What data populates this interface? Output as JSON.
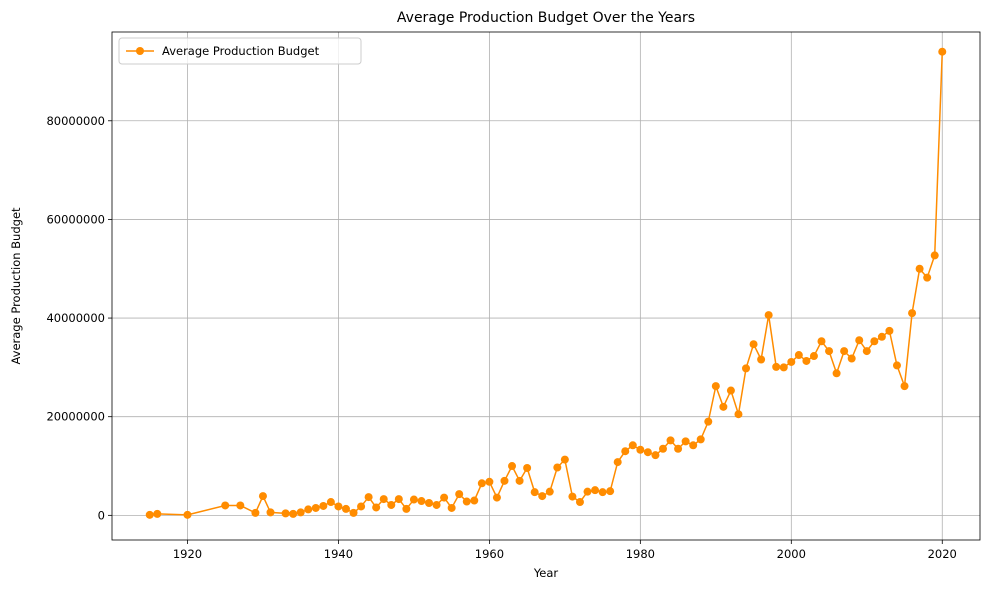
{
  "chart_data": {
    "type": "line",
    "title": "Average Production Budget Over the Years",
    "xlabel": "Year",
    "ylabel": "Average Production Budget",
    "xlim": [
      1910,
      2025
    ],
    "ylim": [
      -5000000,
      98000000
    ],
    "xticks": [
      1920,
      1940,
      1960,
      1980,
      2000,
      2020
    ],
    "yticks": [
      0,
      20000000,
      40000000,
      60000000,
      80000000
    ],
    "ytick_labels": [
      "0",
      "20000000",
      "40000000",
      "60000000",
      "80000000"
    ],
    "grid": true,
    "legend": "top-left",
    "color": "#ff8c00",
    "series": [
      {
        "name": "Average Production Budget",
        "x": [
          1915,
          1916,
          1920,
          1925,
          1927,
          1929,
          1930,
          1931,
          1933,
          1934,
          1935,
          1936,
          1937,
          1938,
          1939,
          1940,
          1941,
          1942,
          1943,
          1944,
          1945,
          1946,
          1947,
          1948,
          1949,
          1950,
          1951,
          1952,
          1953,
          1954,
          1955,
          1956,
          1957,
          1958,
          1959,
          1960,
          1961,
          1962,
          1963,
          1964,
          1965,
          1966,
          1967,
          1968,
          1969,
          1970,
          1971,
          1972,
          1973,
          1974,
          1975,
          1976,
          1977,
          1978,
          1979,
          1980,
          1981,
          1982,
          1983,
          1984,
          1985,
          1986,
          1987,
          1988,
          1989,
          1990,
          1991,
          1992,
          1993,
          1994,
          1995,
          1996,
          1997,
          1998,
          1999,
          2000,
          2001,
          2002,
          2003,
          2004,
          2005,
          2006,
          2007,
          2008,
          2009,
          2010,
          2011,
          2012,
          2013,
          2014,
          2015,
          2016,
          2017,
          2018,
          2019,
          2020
        ],
        "y": [
          100000,
          300000,
          100000,
          2000000,
          2000000,
          500000,
          3900000,
          600000,
          400000,
          300000,
          600000,
          1200000,
          1500000,
          1900000,
          2700000,
          1800000,
          1300000,
          500000,
          1800000,
          3700000,
          1600000,
          3300000,
          2100000,
          3300000,
          1300000,
          3200000,
          2900000,
          2500000,
          2100000,
          3600000,
          1500000,
          4300000,
          2800000,
          3000000,
          6500000,
          6800000,
          3600000,
          7000000,
          10000000,
          7000000,
          9600000,
          4700000,
          3900000,
          4800000,
          9700000,
          11300000,
          3800000,
          2700000,
          4800000,
          5100000,
          4700000,
          4900000,
          10800000,
          13000000,
          14200000,
          13300000,
          12800000,
          12200000,
          13500000,
          15200000,
          13500000,
          15000000,
          14200000,
          15400000,
          19000000,
          26200000,
          22000000,
          25300000,
          20500000,
          29800000,
          34700000,
          31600000,
          40600000,
          30100000,
          30000000,
          31100000,
          32500000,
          31300000,
          32300000,
          35300000,
          33300000,
          28800000,
          33300000,
          31800000,
          35500000,
          33300000,
          35300000,
          36200000,
          37400000,
          30400000,
          26200000,
          41000000,
          50000000,
          48200000,
          52700000,
          94000000
        ]
      }
    ]
  }
}
